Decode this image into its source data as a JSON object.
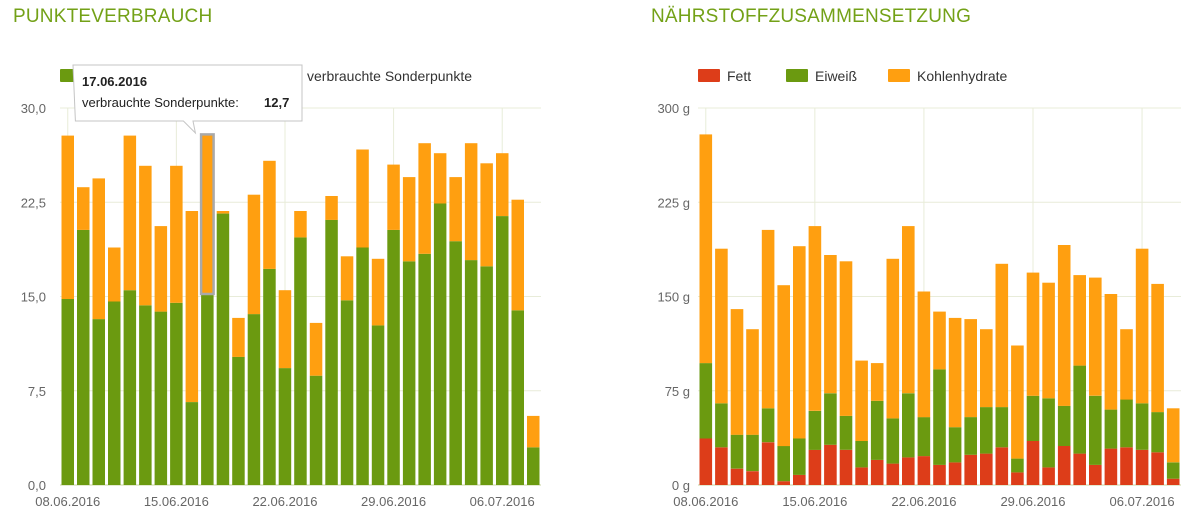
{
  "colors": {
    "title": "#73a117",
    "eaten": "#6b9a10",
    "extra": "#ff9f10",
    "fett": "#dd3d19",
    "grid": "#e8ecd9",
    "axis": "#c9d6a3"
  },
  "charts": {
    "left": {
      "title": "PUNKTEVERBRAUCH"
    },
    "right": {
      "title": "NÄHRSTOFFZUSAMMENSETZUNG"
    }
  },
  "chart_data": [
    {
      "type": "bar",
      "stacked": true,
      "title": "PUNKTEVERBRAUCH",
      "x_tick_labels": [
        "08.06.2016",
        "15.06.2016",
        "22.06.2016",
        "29.06.2016",
        "06.07.2016"
      ],
      "y_tick_labels": [
        "0,0",
        "7,5",
        "15,0",
        "22,5",
        "30,0"
      ],
      "ylim": [
        0,
        30
      ],
      "grid": true,
      "legend_position": "top-left",
      "series": [
        {
          "values": [
            14.8,
            20.3,
            13.2,
            14.6,
            15.5,
            14.3,
            13.8,
            14.5,
            6.6,
            15.2,
            21.6,
            10.2,
            13.6,
            17.2,
            9.3,
            19.7,
            8.7,
            21.1,
            14.7,
            18.9,
            12.7,
            20.3,
            17.8,
            18.4,
            22.4,
            19.4,
            17.9,
            17.4,
            21.4,
            13.9,
            3.0
          ]
        },
        {
          "name": "verbrauchte Sonderpunkte",
          "values": [
            13.0,
            3.4,
            11.2,
            4.3,
            12.3,
            11.1,
            6.8,
            10.9,
            15.2,
            12.7,
            0.2,
            3.1,
            9.5,
            8.6,
            6.2,
            2.1,
            4.2,
            1.9,
            3.5,
            7.8,
            5.3,
            5.2,
            6.7,
            8.8,
            4.0,
            5.1,
            9.3,
            8.2,
            5.0,
            8.8,
            2.5
          ]
        }
      ],
      "tooltip": {
        "date": "17.06.2016",
        "label": "verbrauchte Sonderpunkte:",
        "value": "12,7"
      }
    },
    {
      "type": "bar",
      "stacked": true,
      "title": "NÄHRSTOFFZUSAMMENSETZUNG",
      "x_tick_labels": [
        "08.06.2016",
        "15.06.2016",
        "22.06.2016",
        "29.06.2016",
        "06.07.2016"
      ],
      "y_tick_labels": [
        "0 g",
        "75 g",
        "150 g",
        "225 g",
        "300 g"
      ],
      "ylim": [
        0,
        300
      ],
      "grid": true,
      "legend_position": "top-left",
      "series": [
        {
          "name": "Fett",
          "values": [
            37,
            30,
            13,
            11,
            34,
            3,
            8,
            28,
            32,
            28,
            14,
            20,
            17,
            22,
            23,
            16,
            18,
            24,
            25,
            30,
            10,
            35,
            14,
            31,
            25,
            16,
            29,
            30,
            28,
            26,
            5
          ]
        },
        {
          "name": "Eiweiß",
          "values": [
            60,
            35,
            27,
            29,
            27,
            28,
            29,
            31,
            41,
            27,
            21,
            47,
            36,
            51,
            31,
            76,
            28,
            30,
            37,
            32,
            11,
            36,
            55,
            32,
            70,
            55,
            31,
            38,
            37,
            32,
            13
          ]
        },
        {
          "name": "Kohlenhydrate",
          "values": [
            182,
            123,
            100,
            84,
            142,
            128,
            153,
            147,
            110,
            123,
            64,
            30,
            127,
            133,
            100,
            46,
            87,
            78,
            62,
            114,
            90,
            98,
            92,
            128,
            72,
            94,
            92,
            56,
            123,
            102,
            43
          ]
        }
      ]
    }
  ]
}
